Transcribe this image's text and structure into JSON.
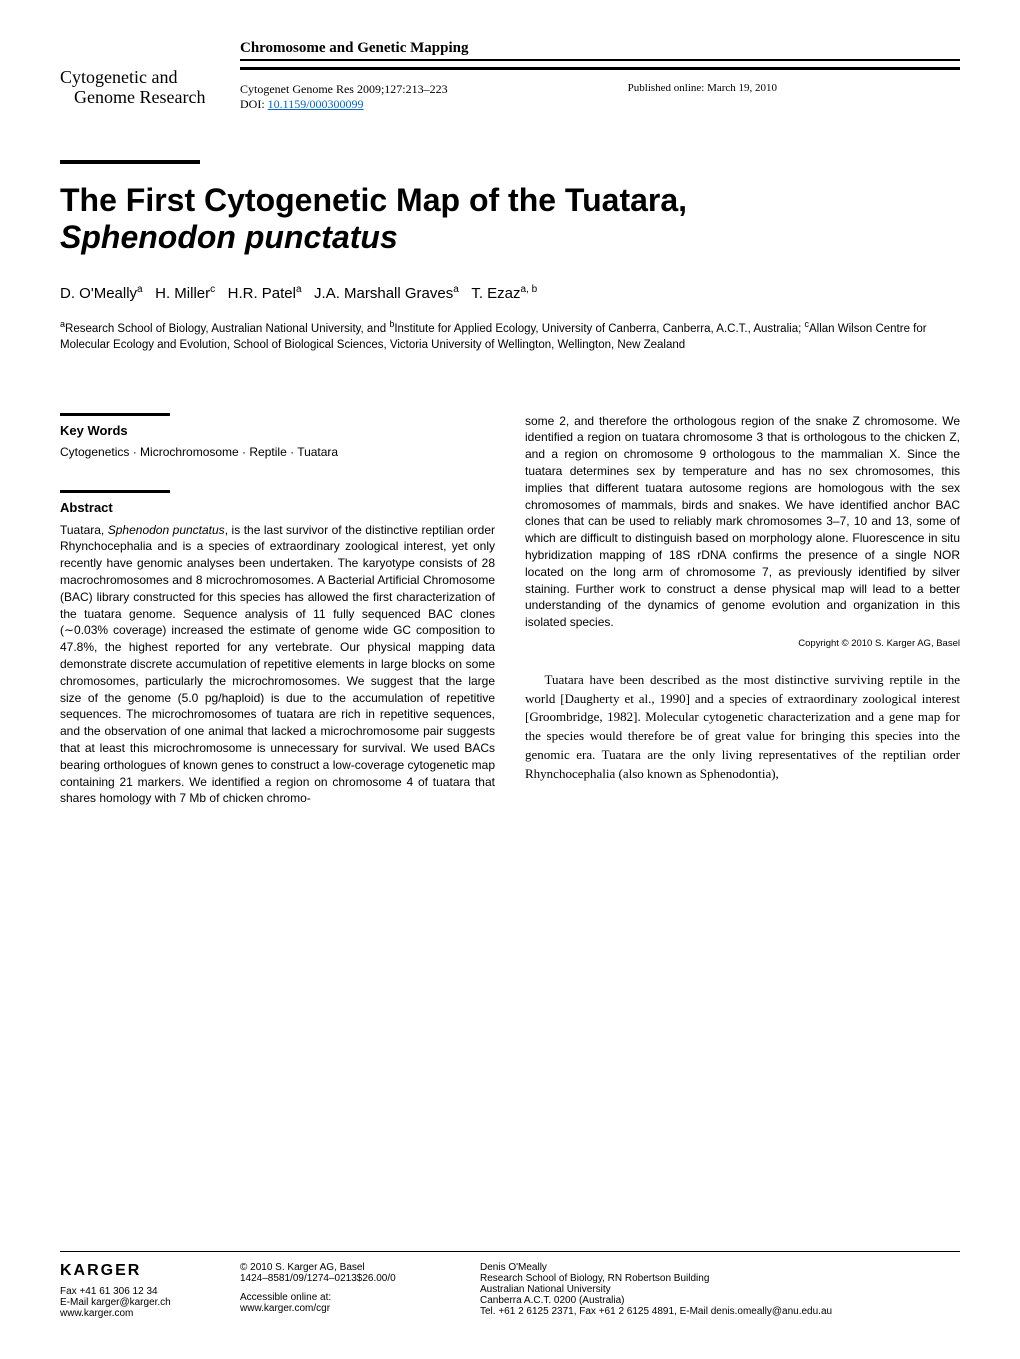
{
  "header": {
    "section_title": "Chromosome and Genetic Mapping",
    "journal_logo_line1": "Cytogenetic and",
    "journal_logo_line2": "Genome Research",
    "citation": "Cytogenet Genome Res 2009;127:213–223",
    "doi_label": "DOI: ",
    "doi": "10.1159/000300099",
    "pub_date": "Published online: March 19, 2010"
  },
  "article": {
    "title_line1": "The First Cytogenetic Map of the Tuatara,",
    "title_line2": "Sphenodon punctatus",
    "authors_html": "D. O'Meally<sup>a</sup>&nbsp;&nbsp;&nbsp;H. Miller<sup>c</sup>&nbsp;&nbsp;&nbsp;H.R. Patel<sup>a</sup>&nbsp;&nbsp;&nbsp;J.A. Marshall Graves<sup>a</sup>&nbsp;&nbsp;&nbsp;T. Ezaz<sup>a, b</sup>",
    "affiliations_html": "<sup>a</sup>Research School of Biology, Australian National University, and <sup>b</sup>Institute for Applied Ecology, University of Canberra, Canberra, A.C.T., Australia; <sup>c</sup>Allan Wilson Centre for Molecular Ecology and Evolution, School of Biological Sciences, Victoria University of Wellington, Wellington, New Zealand"
  },
  "keywords": {
    "heading": "Key Words",
    "text": "Cytogenetics · Microchromosome · Reptile · Tuatara"
  },
  "abstract": {
    "heading": "Abstract",
    "text_left": "Tuatara, <i>Sphenodon punctatus</i>, is the last survivor of the distinctive reptilian order Rhynchocephalia and is a species of extraordinary zoological interest, yet only recently have genomic analyses been undertaken. The karyotype consists of 28 macrochromosomes and 8 microchromosomes. A Bacterial Artificial Chromosome (BAC) library constructed for this species has allowed the first characterization of the tuatara genome. Sequence analysis of 11 fully sequenced BAC clones (∼0.03% coverage) increased the estimate of genome wide GC composition to 47.8%, the highest reported for any vertebrate. Our physical mapping data demonstrate discrete accumulation of repetitive elements in large blocks on some chromosomes, particularly the microchromosomes. We suggest that the large size of the genome (5.0 pg/haploid) is due to the accumulation of repetitive sequences. The microchromosomes of tuatara are rich in repetitive sequences, and the observation of one animal that lacked a microchromosome pair suggests that at least this microchromosome is unnecessary for survival. We used BACs bearing orthologues of known genes to construct a low-coverage cytogenetic map containing 21 markers. We identified a region on chromosome 4 of tuatara that shares homology with 7 Mb of chicken chromo-",
    "text_right": "some 2, and therefore the orthologous region of the snake Z chromosome. We identified a region on tuatara chromosome 3 that is orthologous to the chicken Z, and a region on chromosome 9 orthologous to the mammalian X. Since the tuatara determines sex by temperature and has no sex chromosomes, this implies that different tuatara autosome regions are homologous with the sex chromosomes of mammals, birds and snakes. We have identified anchor BAC clones that can be used to reliably mark chromosomes 3–7, 10 and 13, some of which are difficult to distinguish based on morphology alone. Fluorescence in situ hybridization mapping of 18S rDNA confirms the presence of a single NOR located on the long arm of chromosome 7, as previously identified by silver staining. Further work to construct a dense physical map will lead to a better understanding of the dynamics of genome evolution and organization in this isolated species.",
    "copyright": "Copyright © 2010 S. Karger AG, Basel"
  },
  "body": {
    "para1": "Tuatara have been described as the most distinctive surviving reptile in the world [Daugherty et al., 1990] and a species of extraordinary zoological interest [Groombridge, 1982]. Molecular cytogenetic characterization and a gene map for the species would therefore be of great value for bringing this species into the genomic era. Tuatara are the only living representatives of the reptilian order Rhynchocephalia (also known as Sphenodontia),"
  },
  "footer": {
    "karger": "KARGER",
    "fax": "Fax +41 61 306 12 34",
    "email": "E-Mail karger@karger.ch",
    "web": "www.karger.com",
    "copyright": "© 2010 S. Karger AG, Basel",
    "issn": "1424–8581/09/1274–0213$26.00/0",
    "accessible": "Accessible online at:",
    "accessible_url": "www.karger.com/cgr",
    "corr_name": "Denis O'Meally",
    "corr_addr1": "Research School of Biology, RN Robertson Building",
    "corr_addr2": "Australian National University",
    "corr_addr3": "Canberra A.C.T. 0200 (Australia)",
    "corr_tel": "Tel. +61 2 6125 2371, Fax +61 2 6125 4891, E-Mail denis.omeally@anu.edu.au"
  }
}
